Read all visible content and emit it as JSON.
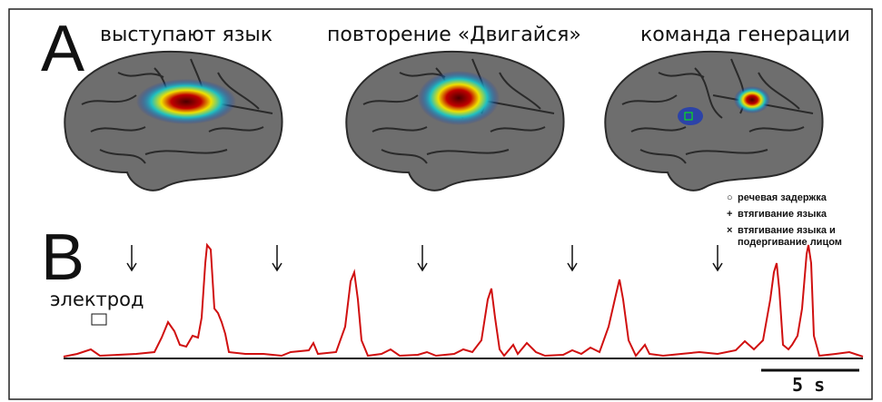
{
  "panel_a": {
    "label": "A",
    "titles": [
      "выступают язык",
      "повторение «Двигайся»",
      "команда генерации"
    ]
  },
  "legend": [
    {
      "symbol": "○",
      "label": "речевая задержка"
    },
    {
      "symbol": "+",
      "label": "втягивание языка"
    },
    {
      "symbol": "×",
      "label": "втягивание языка и подергивание лицом"
    }
  ],
  "panel_b": {
    "label": "B",
    "electrode_label": "электрод",
    "scale_bar": "5 s"
  }
}
